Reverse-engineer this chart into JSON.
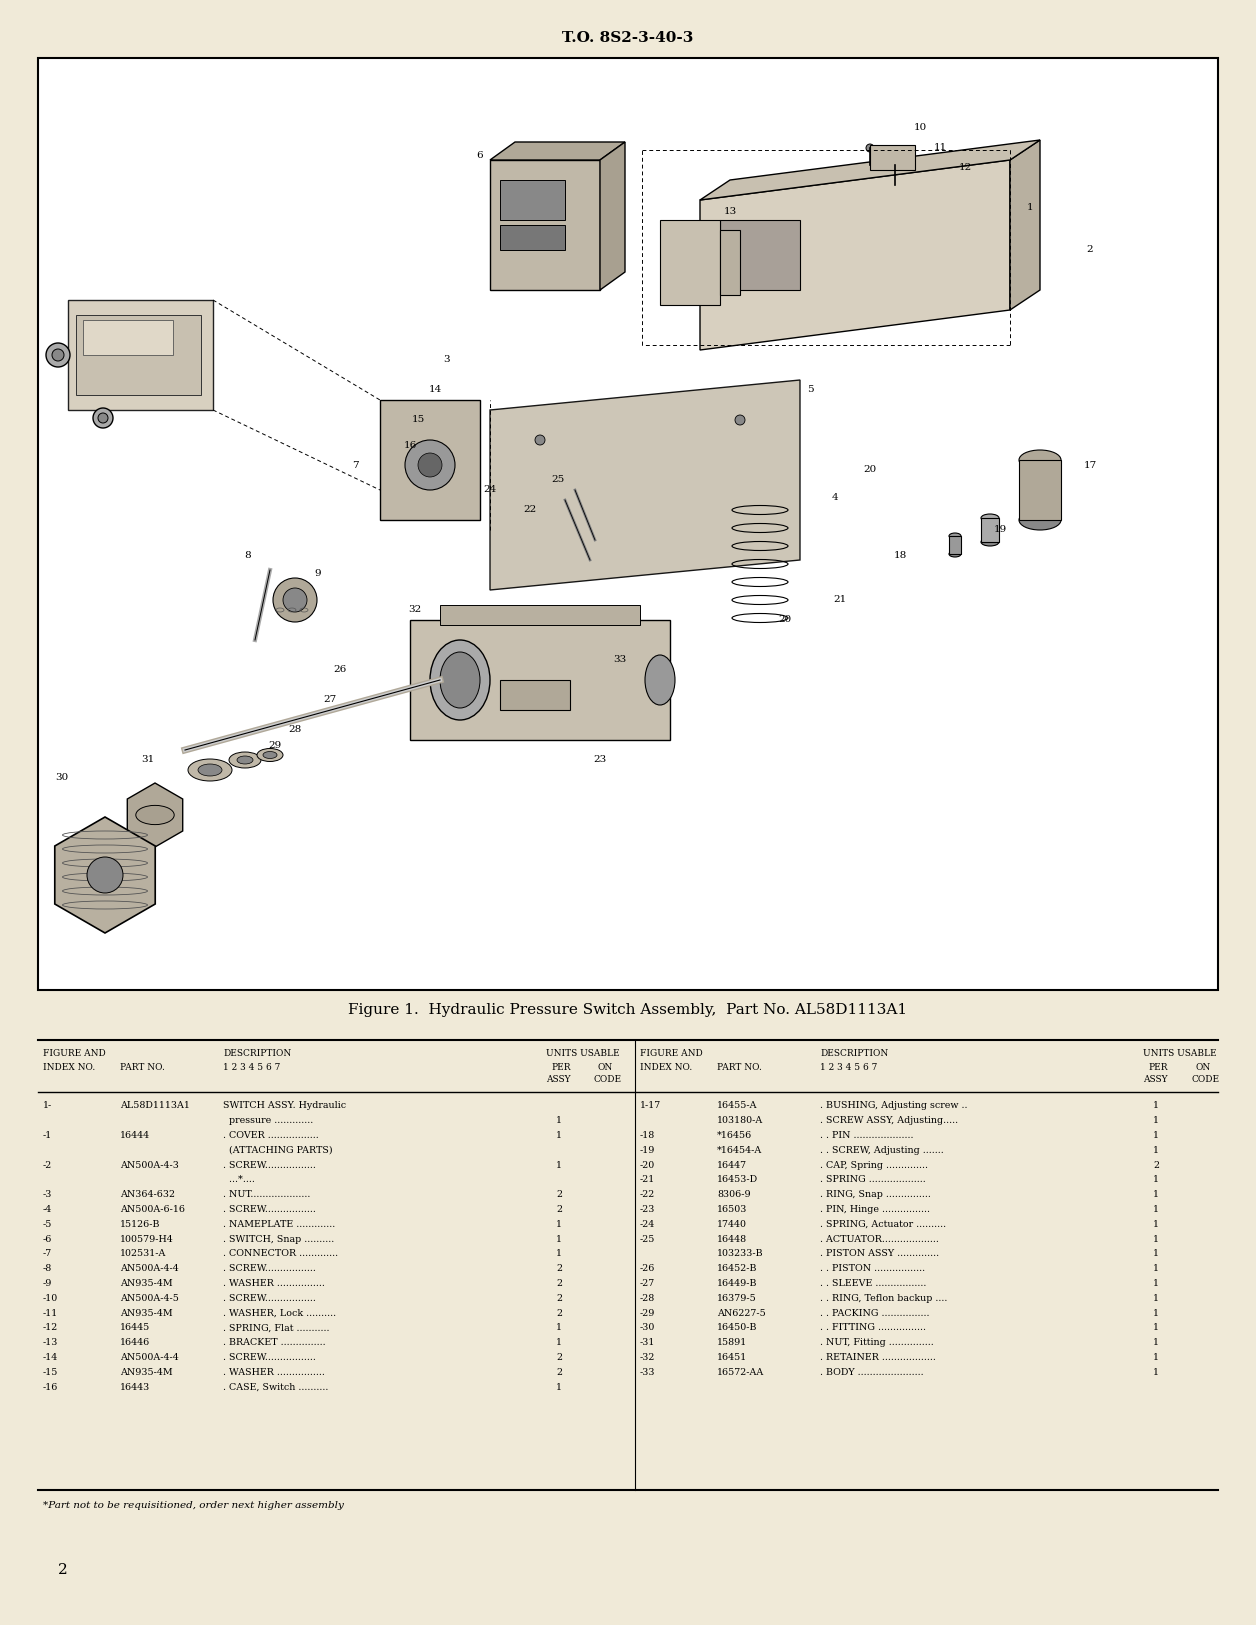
{
  "page_header": "T.O. 8S2-3-40-3",
  "page_number": "2",
  "figure_caption": "Figure 1.  Hydraulic Pressure Switch Assembly,  Part No. AL58D1113A1",
  "footnote": "*Part not to be requisitioned, order next higher assembly",
  "bg_color": "#f0ead8",
  "left_rows": [
    [
      "1-",
      "AL58D1113A1",
      "SWITCH ASSY. Hydraulic",
      "",
      ""
    ],
    [
      "",
      "",
      "  pressure .............",
      "1",
      ""
    ],
    [
      "-1",
      "16444",
      ". COVER .................",
      "1",
      ""
    ],
    [
      "",
      "",
      "  (ATTACHING PARTS)",
      "",
      ""
    ],
    [
      "-2",
      "AN500A-4-3",
      ". SCREW.................",
      "1",
      ""
    ],
    [
      "",
      "",
      "  ...*....",
      "",
      ""
    ],
    [
      "-3",
      "AN364-632",
      ". NUT....................",
      "2",
      ""
    ],
    [
      "-4",
      "AN500A-6-16",
      ". SCREW.................",
      "2",
      ""
    ],
    [
      "-5",
      "15126-B",
      ". NAMEPLATE .............",
      "1",
      ""
    ],
    [
      "-6",
      "100579-H4",
      ". SWITCH, Snap ..........",
      "1",
      ""
    ],
    [
      "-7",
      "102531-A",
      ". CONNECTOR .............",
      "1",
      ""
    ],
    [
      "-8",
      "AN500A-4-4",
      ". SCREW.................",
      "2",
      ""
    ],
    [
      "-9",
      "AN935-4M",
      ". WASHER ................",
      "2",
      ""
    ],
    [
      "-10",
      "AN500A-4-5",
      ". SCREW.................",
      "2",
      ""
    ],
    [
      "-11",
      "AN935-4M",
      ". WASHER, Lock ..........",
      "2",
      ""
    ],
    [
      "-12",
      "16445",
      ". SPRING, Flat ...........",
      "1",
      ""
    ],
    [
      "-13",
      "16446",
      ". BRACKET ...............",
      "1",
      ""
    ],
    [
      "-14",
      "AN500A-4-4",
      ". SCREW.................",
      "2",
      ""
    ],
    [
      "-15",
      "AN935-4M",
      ". WASHER ................",
      "2",
      ""
    ],
    [
      "-16",
      "16443",
      ". CASE, Switch ..........",
      "1",
      ""
    ]
  ],
  "right_rows": [
    [
      "1-17",
      "16455-A",
      ". BUSHING, Adjusting screw ..",
      "1",
      ""
    ],
    [
      "",
      "103180-A",
      ". SCREW ASSY, Adjusting.....",
      "1",
      ""
    ],
    [
      "-18",
      "*16456",
      ". . PIN ....................",
      "1",
      ""
    ],
    [
      "-19",
      "*16454-A",
      ". . SCREW, Adjusting .......",
      "1",
      ""
    ],
    [
      "-20",
      "16447",
      ". CAP, Spring ..............",
      "2",
      ""
    ],
    [
      "-21",
      "16453-D",
      ". SPRING ...................",
      "1",
      ""
    ],
    [
      "-22",
      "8306-9",
      ". RING, Snap ...............",
      "1",
      ""
    ],
    [
      "-23",
      "16503",
      ". PIN, Hinge ................",
      "1",
      ""
    ],
    [
      "-24",
      "17440",
      ". SPRING, Actuator ..........",
      "1",
      ""
    ],
    [
      "-25",
      "16448",
      ". ACTUATOR...................",
      "1",
      ""
    ],
    [
      "",
      "103233-B",
      ". PISTON ASSY ..............",
      "1",
      ""
    ],
    [
      "-26",
      "16452-B",
      ". . PISTON .................",
      "1",
      ""
    ],
    [
      "-27",
      "16449-B",
      ". . SLEEVE .................",
      "1",
      ""
    ],
    [
      "-28",
      "16379-5",
      ". . RING, Teflon backup ....",
      "1",
      ""
    ],
    [
      "-29",
      "AN6227-5",
      ". . PACKING ................",
      "1",
      ""
    ],
    [
      "-30",
      "16450-B",
      ". . FITTING ................",
      "1",
      ""
    ],
    [
      "-31",
      "15891",
      ". NUT, Fitting ...............",
      "1",
      ""
    ],
    [
      "-32",
      "16451",
      ". RETAINER ..................",
      "1",
      ""
    ],
    [
      "-33",
      "16572-AA",
      ". BODY ......................",
      "1",
      ""
    ]
  ]
}
